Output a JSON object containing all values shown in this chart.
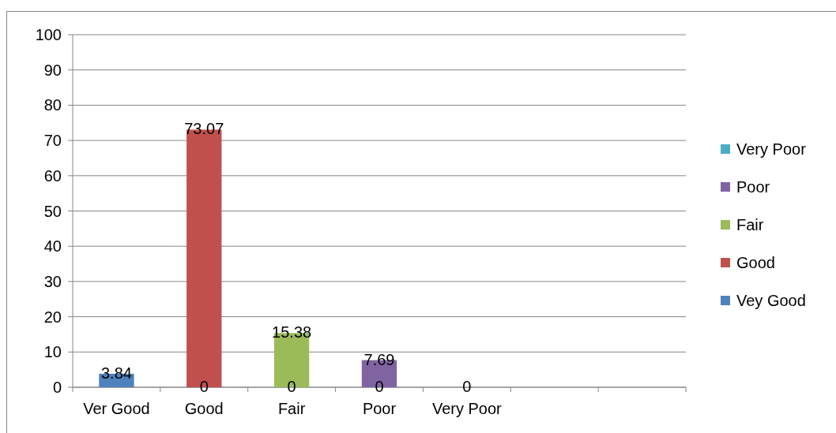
{
  "chart_data": {
    "type": "bar",
    "categories": [
      "Ver Good",
      "Good",
      "Fair",
      "Poor",
      "Very Poor",
      null,
      null
    ],
    "series": [
      {
        "name": "Vey Good",
        "color": "#4f81bd",
        "values": [
          3.84,
          0,
          0,
          0,
          0,
          null,
          null
        ]
      },
      {
        "name": "Good",
        "color": "#c0504d",
        "values": [
          null,
          73.07,
          null,
          null,
          null,
          null,
          null
        ]
      },
      {
        "name": "Fair",
        "color": "#9bbb59",
        "values": [
          null,
          null,
          15.38,
          null,
          null,
          null,
          null
        ]
      },
      {
        "name": "Poor",
        "color": "#8064a2",
        "values": [
          null,
          null,
          null,
          7.69,
          null,
          null,
          null
        ]
      },
      {
        "name": "Very Poor",
        "color": "#4bacc6",
        "values": [
          null,
          null,
          null,
          null,
          null,
          null,
          null
        ]
      }
    ],
    "ylim": [
      0,
      100
    ],
    "yticks": [
      0,
      10,
      20,
      30,
      40,
      50,
      60,
      70,
      80,
      90,
      100
    ],
    "grid": "y",
    "legend": "right",
    "data_labels": true
  }
}
